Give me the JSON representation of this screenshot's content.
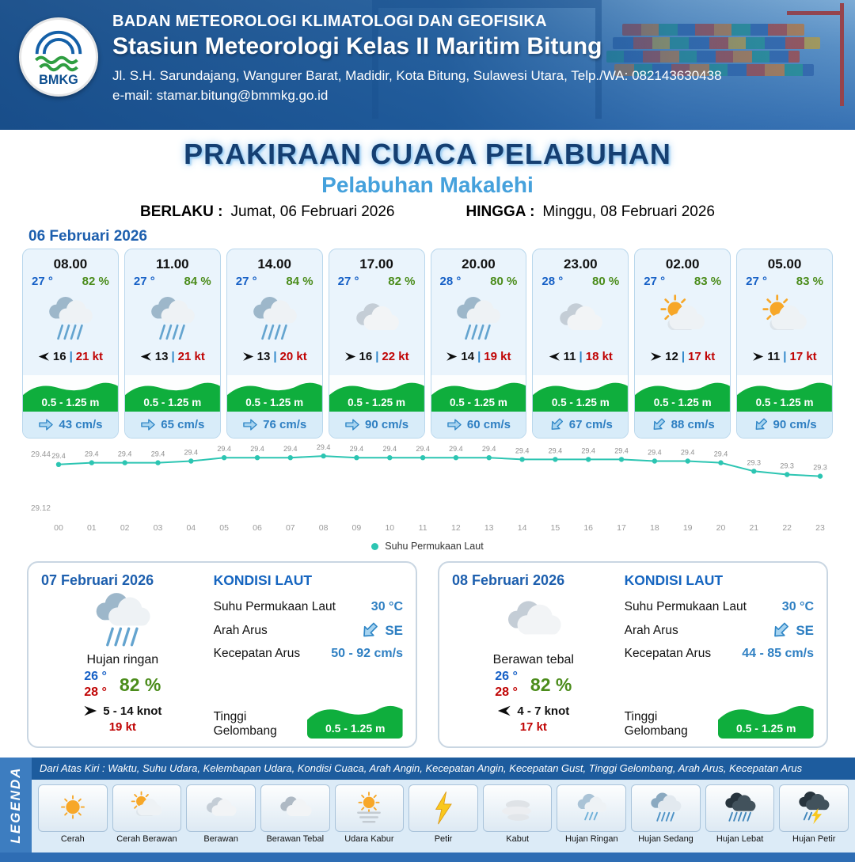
{
  "header": {
    "logo_text": "BMKG",
    "org_line": "BADAN METEOROLOGI KLIMATOLOGI DAN GEOFISIKA",
    "station_line": "Stasiun Meteorologi Kelas II Maritim Bitung",
    "address_line": "Jl. S.H. Sarundajang, Wangurer Barat, Madidir, Kota Bitung, Sulawesi Utara, Telp./WA: 082143630438",
    "email_line": "e-mail: stamar.bitung@bmmkg.go.id"
  },
  "title": {
    "main": "PRAKIRAAN CUACA PELABUHAN",
    "subtitle": "Pelabuhan Makalehi",
    "valid_from_label": "BERLAKU :",
    "valid_from": "Jumat, 06 Februari 2026",
    "valid_to_label": "HINGGA :",
    "valid_to": "Minggu, 08 Februari 2026"
  },
  "forecast_date": "06 Februari 2026",
  "ui": {
    "wind_separator": "|"
  },
  "colors": {
    "wave_green": "#0fae3d",
    "temp_blue": "#1660c6",
    "humidity_green": "#4b8c1b",
    "gust_red": "#c00404",
    "current_blue": "#2e7fc2",
    "header_blue": "#1d5c9e"
  },
  "forecast_cards": [
    {
      "time": "08.00",
      "temp": "27 °",
      "humidity": "82 %",
      "icon": "rain",
      "wind_dir": "left",
      "wind_speed": "16",
      "gust": "21 kt",
      "wave_height": "0.5 - 1.25 m",
      "current_dir": "right",
      "current_speed": "43 cm/s"
    },
    {
      "time": "11.00",
      "temp": "27 °",
      "humidity": "84 %",
      "icon": "rain",
      "wind_dir": "left",
      "wind_speed": "13",
      "gust": "21 kt",
      "wave_height": "0.5 - 1.25 m",
      "current_dir": "right",
      "current_speed": "65 cm/s"
    },
    {
      "time": "14.00",
      "temp": "27 °",
      "humidity": "84 %",
      "icon": "rain",
      "wind_dir": "right",
      "wind_speed": "13",
      "gust": "20 kt",
      "wave_height": "0.5 - 1.25 m",
      "current_dir": "right",
      "current_speed": "76 cm/s"
    },
    {
      "time": "17.00",
      "temp": "27 °",
      "humidity": "82 %",
      "icon": "cloud",
      "wind_dir": "right",
      "wind_speed": "16",
      "gust": "22 kt",
      "wave_height": "0.5 - 1.25 m",
      "current_dir": "right",
      "current_speed": "90 cm/s"
    },
    {
      "time": "20.00",
      "temp": "28 °",
      "humidity": "80 %",
      "icon": "rain",
      "wind_dir": "right",
      "wind_speed": "14",
      "gust": "19 kt",
      "wave_height": "0.5 - 1.25 m",
      "current_dir": "right",
      "current_speed": "60 cm/s"
    },
    {
      "time": "23.00",
      "temp": "28 °",
      "humidity": "80 %",
      "icon": "cloud",
      "wind_dir": "left",
      "wind_speed": "11",
      "gust": "18 kt",
      "wave_height": "0.5 - 1.25 m",
      "current_dir": "down-left",
      "current_speed": "67 cm/s"
    },
    {
      "time": "02.00",
      "temp": "27 °",
      "humidity": "83 %",
      "icon": "sun-cloud",
      "wind_dir": "right",
      "wind_speed": "12",
      "gust": "17 kt",
      "wave_height": "0.5 - 1.25 m",
      "current_dir": "down-left",
      "current_speed": "88 cm/s"
    },
    {
      "time": "05.00",
      "temp": "27 °",
      "humidity": "83 %",
      "icon": "sun-cloud",
      "wind_dir": "right",
      "wind_speed": "11",
      "gust": "17 kt",
      "wave_height": "0.5 - 1.25 m",
      "current_dir": "down-left",
      "current_speed": "90 cm/s"
    }
  ],
  "chart_data": {
    "type": "line",
    "series_label": "Suhu Permukaan Laut",
    "x": [
      "00",
      "01",
      "02",
      "03",
      "04",
      "05",
      "06",
      "07",
      "08",
      "09",
      "10",
      "11",
      "12",
      "13",
      "14",
      "15",
      "16",
      "17",
      "18",
      "19",
      "20",
      "21",
      "22",
      "23"
    ],
    "values": [
      29.38,
      29.39,
      29.39,
      29.39,
      29.4,
      29.42,
      29.42,
      29.42,
      29.43,
      29.42,
      29.42,
      29.42,
      29.42,
      29.42,
      29.41,
      29.41,
      29.41,
      29.41,
      29.4,
      29.4,
      29.39,
      29.34,
      29.32,
      29.31
    ],
    "labels": [
      "29.4",
      "29.4",
      "29.4",
      "29.4",
      "29.4",
      "29.4",
      "29.4",
      "29.4",
      "29.4",
      "29.4",
      "29.4",
      "29.4",
      "29.4",
      "29.4",
      "29.4",
      "29.4",
      "29.4",
      "29.4",
      "29.4",
      "29.4",
      "29.4",
      "29.3",
      "29.3",
      "29.3"
    ],
    "ylim": [
      29.12,
      29.44
    ],
    "yticks": [
      "29.44",
      "29.12"
    ],
    "grid": false,
    "legend_position": "bottom",
    "line_color": "#2cc5b2"
  },
  "daily_cards": [
    {
      "date": "07 Februari 2026",
      "icon": "rain",
      "condition": "Hujan ringan",
      "temp_min": "26 °",
      "temp_max": "28 °",
      "humidity": "82 %",
      "wind_dir": "right",
      "wind_range": "5 - 14 knot",
      "gust": "19 kt",
      "sea": {
        "heading": "KONDISI LAUT",
        "sst_label": "Suhu Permukaan Laut",
        "sst": "30 °C",
        "dir_label": "Arah Arus",
        "dir_arrow": "down-left",
        "dir": "SE",
        "speed_label": "Kecepatan Arus",
        "speed": "50 - 92 cm/s",
        "wave_label": "Tinggi Gelombang",
        "wave": "0.5 - 1.25 m"
      }
    },
    {
      "date": "08 Februari 2026",
      "icon": "cloud",
      "condition": "Berawan tebal",
      "temp_min": "26 °",
      "temp_max": "28 °",
      "humidity": "82 %",
      "wind_dir": "left",
      "wind_range": "4 - 7 knot",
      "gust": "17 kt",
      "sea": {
        "heading": "KONDISI LAUT",
        "sst_label": "Suhu Permukaan Laut",
        "sst": "30 °C",
        "dir_label": "Arah Arus",
        "dir_arrow": "down-left",
        "dir": "SE",
        "speed_label": "Kecepatan Arus",
        "speed": "44 - 85 cm/s",
        "wave_label": "Tinggi Gelombang",
        "wave": "0.5 - 1.25 m"
      }
    }
  ],
  "legend": {
    "title": "LEGENDA",
    "description": "Dari Atas Kiri : Waktu, Suhu Udara, Kelembapan Udara, Kondisi Cuaca, Arah Angin, Kecepatan Angin, Kecepatan Gust, Tinggi Gelombang, Arah Arus, Kecepatan Arus",
    "items": [
      {
        "label": "Cerah",
        "icon": "sun"
      },
      {
        "label": "Cerah Berawan",
        "icon": "sun-cloud"
      },
      {
        "label": "Berawan",
        "icon": "cloud"
      },
      {
        "label": "Berawan Tebal",
        "icon": "clouds"
      },
      {
        "label": "Udara Kabur",
        "icon": "haze"
      },
      {
        "label": "Petir",
        "icon": "thunder"
      },
      {
        "label": "Kabut",
        "icon": "fog"
      },
      {
        "label": "Hujan Ringan",
        "icon": "rain-light"
      },
      {
        "label": "Hujan Sedang",
        "icon": "rain-medium"
      },
      {
        "label": "Hujan Lebat",
        "icon": "rain-heavy"
      },
      {
        "label": "Hujan Petir",
        "icon": "rain-thunder"
      }
    ]
  }
}
